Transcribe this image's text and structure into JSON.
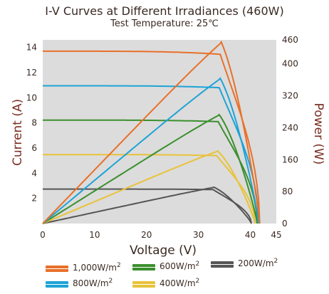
{
  "chart_data": {
    "type": "line",
    "title": "I-V Curves at Different Irradiances (460W)",
    "subtitle": "Test Temperature: 25℃",
    "xlabel": "Voltage (V)",
    "ylabel": "Current (A)",
    "y2label": "Power (W)",
    "xlim": [
      0,
      45
    ],
    "ylim": [
      0,
      14.6
    ],
    "y2lim": [
      0,
      460
    ],
    "xticks": [
      "0",
      "10",
      "20",
      "30",
      "40",
      "45"
    ],
    "yticks": [
      "2",
      "4",
      "6",
      "8",
      "10",
      "12",
      "14"
    ],
    "y2ticks": [
      "0",
      "80",
      "160",
      "240",
      "320",
      "400",
      "460"
    ],
    "grid": false,
    "legend_position": "bottom",
    "series": [
      {
        "name": "1,000W/m2",
        "color": "#e8702a",
        "iv": {
          "isc": 13.7,
          "vmp": 34.2,
          "imp": 13.45,
          "voc": 41.8
        },
        "pv": {
          "pmax": 460,
          "vmp": 34.2,
          "voc": 41.8
        }
      },
      {
        "name": "800W/m2",
        "color": "#1ea3d6",
        "iv": {
          "isc": 10.95,
          "vmp": 34.0,
          "imp": 10.8,
          "voc": 41.6
        },
        "pv": {
          "pmax": 368,
          "vmp": 34.0,
          "voc": 41.6
        }
      },
      {
        "name": "600W/m2",
        "color": "#3b8f2e",
        "iv": {
          "isc": 8.22,
          "vmp": 33.8,
          "imp": 8.1,
          "voc": 41.3
        },
        "pv": {
          "pmax": 276,
          "vmp": 33.8,
          "voc": 41.3
        }
      },
      {
        "name": "400W/m2",
        "color": "#e8c33a",
        "iv": {
          "isc": 5.48,
          "vmp": 33.5,
          "imp": 5.4,
          "voc": 40.9
        },
        "pv": {
          "pmax": 184,
          "vmp": 33.5,
          "voc": 40.9
        }
      },
      {
        "name": "200W/m2",
        "color": "#555555",
        "iv": {
          "isc": 2.74,
          "vmp": 32.8,
          "imp": 2.7,
          "voc": 40.2
        },
        "pv": {
          "pmax": 92,
          "vmp": 32.8,
          "voc": 40.2
        }
      }
    ]
  },
  "legend": {
    "items": [
      {
        "label": "1,000W/m",
        "sup": "2",
        "color": "#e8702a"
      },
      {
        "label": "600W/m",
        "sup": "2",
        "color": "#3b8f2e"
      },
      {
        "label": "200W/m",
        "sup": "2",
        "color": "#555555"
      },
      {
        "label": "800W/m",
        "sup": "2",
        "color": "#1ea3d6"
      },
      {
        "label": "400W/m",
        "sup": "2",
        "color": "#e8c33a"
      }
    ]
  }
}
